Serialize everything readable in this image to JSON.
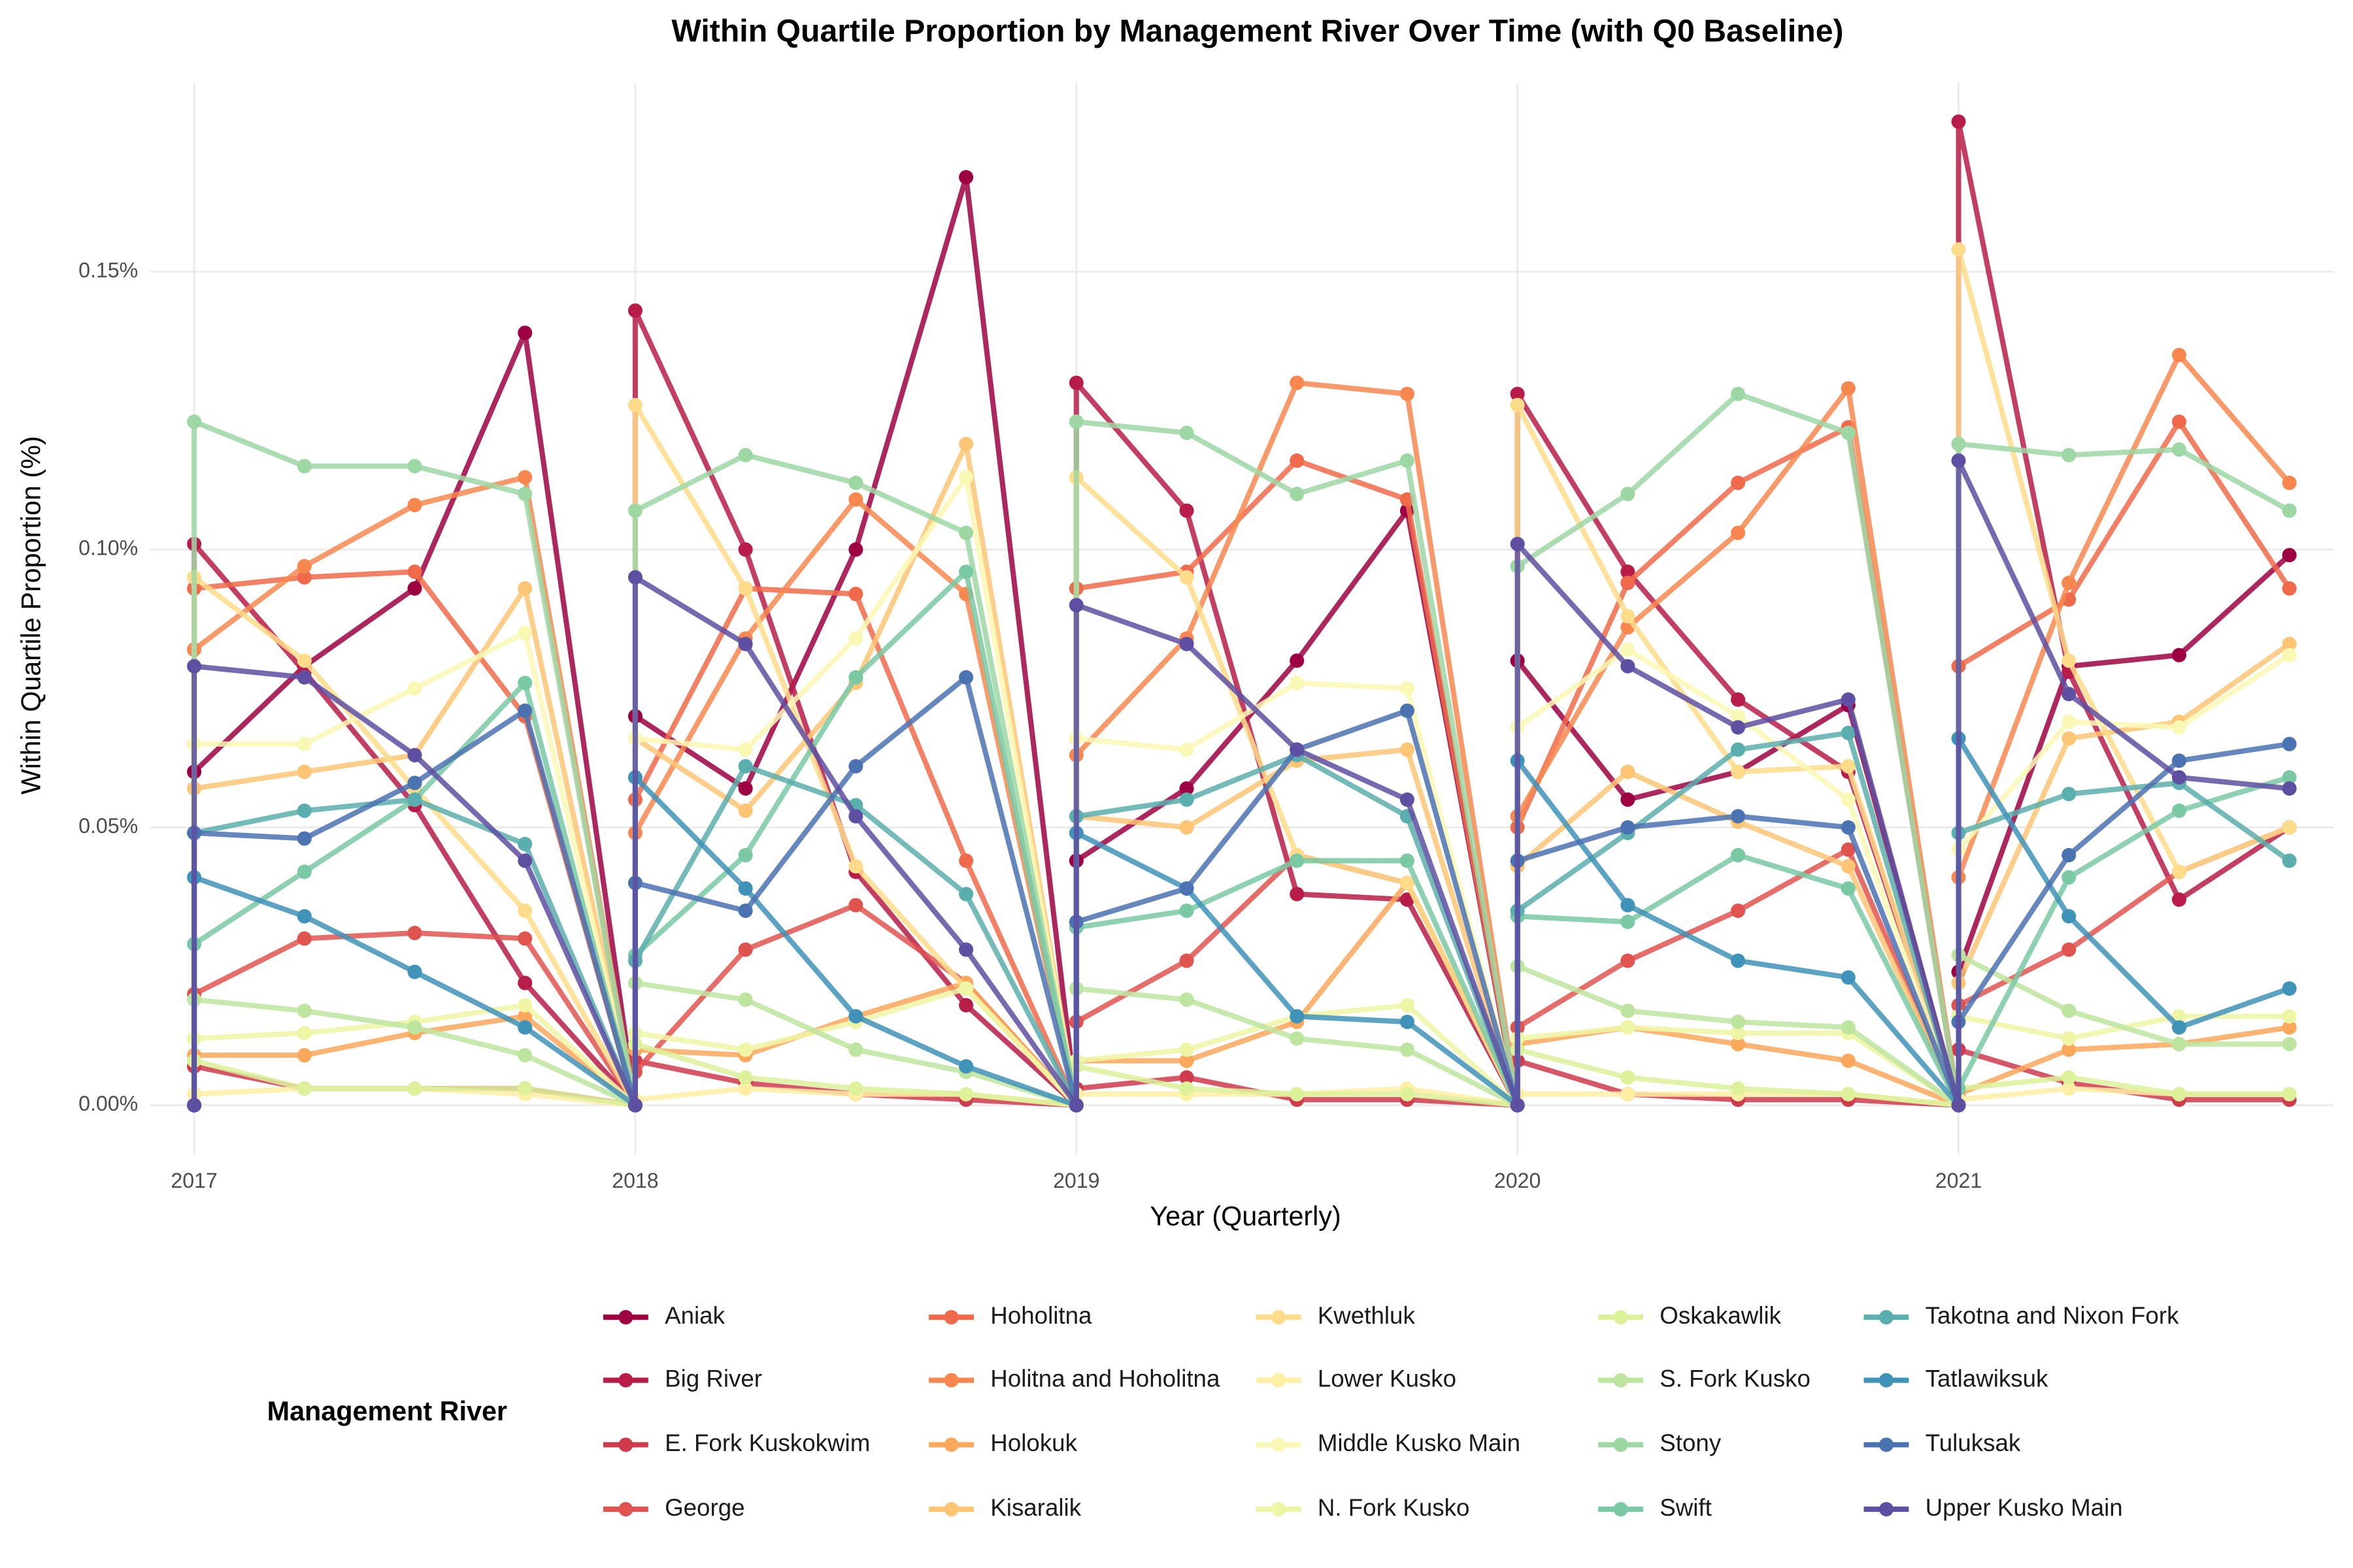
{
  "chart_data": {
    "type": "line",
    "title": "Within Quartile Proportion by Management River Over Time (with Q0 Baseline)",
    "x_label": "Year (Quarterly)",
    "y_label": "Within Quartile Proportion (%)",
    "legend_title": "Management River",
    "legend": "bottom",
    "grid": true,
    "xlim": [
      2016.9,
      2021.85
    ],
    "xticks": [
      2017,
      2018,
      2019,
      2020,
      2021
    ],
    "ylim": [
      -0.009,
      0.184
    ],
    "yticks": [
      {
        "value": 0,
        "label": "0.00%"
      },
      {
        "value": 0.05,
        "label": "0.05%"
      },
      {
        "value": 0.1,
        "label": "0.10%"
      },
      {
        "value": 0.15,
        "label": "0.15%"
      }
    ],
    "x": [
      2017,
      2017,
      2017.25,
      2017.5,
      2017.75,
      2018,
      2018,
      2018.25,
      2018.5,
      2018.75,
      2019,
      2019,
      2019.25,
      2019.5,
      2019.75,
      2020,
      2020,
      2020.25,
      2020.5,
      2020.75,
      2021,
      2021,
      2021.25,
      2021.5,
      2021.75
    ],
    "series": [
      {
        "name": "Aniak",
        "color": "#9E0142",
        "values": [
          0,
          0.06,
          0.079,
          0.093,
          0.139,
          0,
          0.07,
          0.057,
          0.1,
          0.167,
          0,
          0.044,
          0.057,
          0.08,
          0.107,
          0,
          0.08,
          0.055,
          0.06,
          0.072,
          0,
          0.024,
          0.079,
          0.081,
          0.099
        ]
      },
      {
        "name": "Big River",
        "color": "#B71D48",
        "values": [
          0,
          0.101,
          0.078,
          0.054,
          0.022,
          0,
          0.143,
          0.1,
          0.042,
          0.018,
          0,
          0.13,
          0.107,
          0.038,
          0.037,
          0,
          0.128,
          0.096,
          0.073,
          0.06,
          0,
          0.177,
          0.078,
          0.037,
          0.05
        ]
      },
      {
        "name": "E. Fork Kuskokwim",
        "color": "#CF3A4D",
        "values": [
          0,
          0.007,
          0.003,
          0.003,
          0.003,
          0,
          0.008,
          0.004,
          0.002,
          0.001,
          0,
          0.003,
          0.005,
          0.001,
          0.001,
          0,
          0.008,
          0.002,
          0.001,
          0.001,
          0,
          0.01,
          0.004,
          0.001,
          0.001
        ]
      },
      {
        "name": "George",
        "color": "#E05450",
        "values": [
          0,
          0.02,
          0.03,
          0.031,
          0.03,
          0,
          0.006,
          0.028,
          0.036,
          0.022,
          0,
          0.015,
          0.026,
          0.045,
          0.04,
          0,
          0.014,
          0.026,
          0.035,
          0.046,
          0,
          0.018,
          0.028,
          0.042,
          0.05
        ]
      },
      {
        "name": "Hoholitna",
        "color": "#EE6A4A",
        "values": [
          0,
          0.093,
          0.095,
          0.096,
          0.07,
          0,
          0.055,
          0.093,
          0.092,
          0.044,
          0,
          0.093,
          0.096,
          0.116,
          0.109,
          0,
          0.05,
          0.094,
          0.112,
          0.122,
          0,
          0.079,
          0.091,
          0.123,
          0.093
        ]
      },
      {
        "name": "Holitna and Hoholitna",
        "color": "#F7874F",
        "values": [
          0,
          0.082,
          0.097,
          0.108,
          0.113,
          0,
          0.049,
          0.084,
          0.109,
          0.092,
          0,
          0.063,
          0.084,
          0.13,
          0.128,
          0,
          0.052,
          0.086,
          0.103,
          0.129,
          0,
          0.041,
          0.094,
          0.135,
          0.112
        ]
      },
      {
        "name": "Holokuk",
        "color": "#FBA75C",
        "values": [
          0,
          0.009,
          0.009,
          0.013,
          0.016,
          0,
          0.01,
          0.009,
          0.016,
          0.022,
          0,
          0.008,
          0.008,
          0.015,
          0.04,
          0,
          0.011,
          0.014,
          0.011,
          0.008,
          0,
          0.002,
          0.01,
          0.011,
          0.014
        ]
      },
      {
        "name": "Kisaralik",
        "color": "#FDC574",
        "values": [
          0,
          0.057,
          0.06,
          0.063,
          0.093,
          0,
          0.066,
          0.053,
          0.076,
          0.119,
          0,
          0.052,
          0.05,
          0.062,
          0.064,
          0,
          0.043,
          0.06,
          0.051,
          0.043,
          0,
          0.022,
          0.066,
          0.069,
          0.083
        ]
      },
      {
        "name": "Kwethluk",
        "color": "#FEDC8A",
        "values": [
          0,
          0.095,
          0.08,
          0.057,
          0.035,
          0,
          0.126,
          0.093,
          0.043,
          0.021,
          0,
          0.113,
          0.095,
          0.045,
          0.04,
          0,
          0.126,
          0.088,
          0.06,
          0.061,
          0,
          0.154,
          0.08,
          0.042,
          0.05
        ]
      },
      {
        "name": "Lower Kusko",
        "color": "#FEEFA5",
        "values": [
          0,
          0.002,
          0.003,
          0.003,
          0.002,
          0,
          0.001,
          0.003,
          0.002,
          0.002,
          0,
          0.002,
          0.002,
          0.002,
          0.003,
          0,
          0.002,
          0.002,
          0.002,
          0.002,
          0,
          0.001,
          0.003,
          0.002,
          0.002
        ]
      },
      {
        "name": "Middle Kusko Main",
        "color": "#FAF8B5",
        "values": [
          0,
          0.065,
          0.065,
          0.075,
          0.085,
          0,
          0.066,
          0.064,
          0.084,
          0.113,
          0,
          0.066,
          0.064,
          0.076,
          0.075,
          0,
          0.068,
          0.082,
          0.07,
          0.055,
          0,
          0.046,
          0.069,
          0.068,
          0.081
        ]
      },
      {
        "name": "N. Fork Kusko",
        "color": "#EEF6A6",
        "values": [
          0,
          0.012,
          0.013,
          0.015,
          0.018,
          0,
          0.013,
          0.01,
          0.015,
          0.021,
          0,
          0.008,
          0.01,
          0.016,
          0.018,
          0,
          0.012,
          0.014,
          0.013,
          0.013,
          0,
          0.016,
          0.012,
          0.016,
          0.016
        ]
      },
      {
        "name": "Oskakawlik",
        "color": "#DCF19A",
        "values": [
          0,
          0.008,
          0.003,
          0.003,
          0.003,
          0,
          0.011,
          0.005,
          0.003,
          0.002,
          0,
          0.007,
          0.003,
          0.002,
          0.002,
          0,
          0.01,
          0.005,
          0.003,
          0.002,
          0,
          0.003,
          0.005,
          0.002,
          0.002
        ]
      },
      {
        "name": "S. Fork Kusko",
        "color": "#BEE5A0",
        "values": [
          0,
          0.019,
          0.017,
          0.014,
          0.009,
          0,
          0.022,
          0.019,
          0.01,
          0.006,
          0,
          0.021,
          0.019,
          0.012,
          0.01,
          0,
          0.025,
          0.017,
          0.015,
          0.014,
          0,
          0.027,
          0.017,
          0.011,
          0.011
        ]
      },
      {
        "name": "Stony",
        "color": "#9DD7A4",
        "values": [
          0,
          0.123,
          0.115,
          0.115,
          0.11,
          0,
          0.107,
          0.117,
          0.112,
          0.103,
          0,
          0.123,
          0.121,
          0.11,
          0.116,
          0,
          0.097,
          0.11,
          0.128,
          0.121,
          0,
          0.119,
          0.117,
          0.118,
          0.107
        ]
      },
      {
        "name": "Swift",
        "color": "#79C9A5",
        "values": [
          0,
          0.029,
          0.042,
          0.055,
          0.076,
          0,
          0.027,
          0.045,
          0.077,
          0.096,
          0,
          0.032,
          0.035,
          0.044,
          0.044,
          0,
          0.034,
          0.033,
          0.045,
          0.039,
          0,
          0.003,
          0.041,
          0.053,
          0.059
        ]
      },
      {
        "name": "Takotna and Nixon Fork",
        "color": "#5AAEAD",
        "values": [
          0,
          0.049,
          0.053,
          0.055,
          0.047,
          0,
          0.026,
          0.061,
          0.054,
          0.038,
          0,
          0.052,
          0.055,
          0.063,
          0.052,
          0,
          0.035,
          0.049,
          0.064,
          0.067,
          0,
          0.049,
          0.056,
          0.058,
          0.044
        ]
      },
      {
        "name": "Tatlawiksuk",
        "color": "#3F92B8",
        "values": [
          0,
          0.041,
          0.034,
          0.024,
          0.014,
          0,
          0.059,
          0.039,
          0.016,
          0.007,
          0,
          0.049,
          0.039,
          0.016,
          0.015,
          0,
          0.062,
          0.036,
          0.026,
          0.023,
          0,
          0.066,
          0.034,
          0.014,
          0.021
        ]
      },
      {
        "name": "Tuluksak",
        "color": "#4B72B1",
        "values": [
          0,
          0.049,
          0.048,
          0.058,
          0.071,
          0,
          0.04,
          0.035,
          0.061,
          0.077,
          0,
          0.033,
          0.039,
          0.064,
          0.071,
          0,
          0.044,
          0.05,
          0.052,
          0.05,
          0,
          0.015,
          0.045,
          0.062,
          0.065
        ]
      },
      {
        "name": "Upper Kusko Main",
        "color": "#5E4FA2",
        "values": [
          0,
          0.079,
          0.077,
          0.063,
          0.044,
          0,
          0.095,
          0.083,
          0.052,
          0.028,
          0,
          0.09,
          0.083,
          0.064,
          0.055,
          0,
          0.101,
          0.079,
          0.068,
          0.073,
          0,
          0.116,
          0.074,
          0.059,
          0.057
        ]
      }
    ]
  }
}
